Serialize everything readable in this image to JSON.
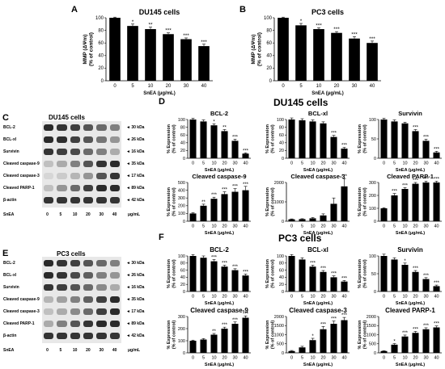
{
  "panels": {
    "A": "A",
    "B": "B",
    "C": "C",
    "D": "D",
    "E": "E",
    "F": "F"
  },
  "blot_C": {
    "title": "DU145 cells",
    "rows": [
      {
        "name": "BCL-2",
        "kda": "30 kDa",
        "intensity": [
          0.9,
          0.85,
          0.8,
          0.7,
          0.6,
          0.5
        ]
      },
      {
        "name": "BCL-xl",
        "kda": "26 kDa",
        "intensity": [
          0.9,
          0.88,
          0.8,
          0.7,
          0.55,
          0.4
        ]
      },
      {
        "name": "Survivin",
        "kda": "16 kDa",
        "intensity": [
          0.85,
          0.8,
          0.75,
          0.6,
          0.5,
          0.3
        ]
      },
      {
        "name": "Cleaved caspase-9",
        "kda": "35 kDa",
        "intensity": [
          0.2,
          0.3,
          0.5,
          0.7,
          0.85,
          0.9
        ]
      },
      {
        "name": "Cleaved caspase-3",
        "kda": "17 kDa",
        "intensity": [
          0.1,
          0.15,
          0.25,
          0.4,
          0.7,
          0.85
        ]
      },
      {
        "name": "Cleaved PARP-1",
        "kda": "89 kDa",
        "intensity": [
          0.2,
          0.4,
          0.6,
          0.8,
          0.9,
          0.9
        ]
      },
      {
        "name": "β-actin",
        "kda": "42 kDa",
        "intensity": [
          0.85,
          0.85,
          0.85,
          0.85,
          0.85,
          0.85
        ]
      }
    ],
    "lane_label": "SnEA",
    "lanes": [
      "0",
      "5",
      "10",
      "20",
      "30",
      "40"
    ],
    "unit": "μg/mL"
  },
  "blot_E": {
    "title": "PC3 cells",
    "rows": [
      {
        "name": "BCL-2",
        "kda": "30 kDa",
        "intensity": [
          0.9,
          0.85,
          0.8,
          0.7,
          0.6,
          0.5
        ]
      },
      {
        "name": "BCL-xl",
        "kda": "26 kDa",
        "intensity": [
          0.9,
          0.85,
          0.75,
          0.65,
          0.5,
          0.4
        ]
      },
      {
        "name": "Survivin",
        "kda": "16 kDa",
        "intensity": [
          0.85,
          0.8,
          0.7,
          0.6,
          0.45,
          0.3
        ]
      },
      {
        "name": "Cleaved caspase-9",
        "kda": "35 kDa",
        "intensity": [
          0.25,
          0.35,
          0.5,
          0.65,
          0.8,
          0.9
        ]
      },
      {
        "name": "Cleaved caspase-3",
        "kda": "17 kDa",
        "intensity": [
          0.2,
          0.3,
          0.45,
          0.6,
          0.8,
          0.9
        ]
      },
      {
        "name": "Cleaved PARP-1",
        "kda": "89 kDa",
        "intensity": [
          0.3,
          0.5,
          0.7,
          0.85,
          0.9,
          0.9
        ]
      },
      {
        "name": "β-actin",
        "kda": "42 kDa",
        "intensity": [
          0.85,
          0.85,
          0.85,
          0.85,
          0.85,
          0.85
        ]
      }
    ],
    "lane_label": "SnEA",
    "lanes": [
      "0",
      "5",
      "10",
      "20",
      "30",
      "40"
    ],
    "unit": "μg/mL"
  },
  "section_D_title": "DU145 cells",
  "section_F_title": "PC3 cells",
  "chart_data": [
    {
      "id": "A",
      "type": "bar",
      "title": "DU145 cells",
      "xlabel": "SnEA (μg/mL)",
      "ylabel": "MMP (ΔΨm)\n(% of control)",
      "categories": [
        "0",
        "5",
        "10",
        "20",
        "30",
        "40"
      ],
      "values": [
        100,
        87,
        82,
        74,
        66,
        55
      ],
      "err": [
        1,
        3,
        3,
        2,
        2,
        3
      ],
      "sig": [
        "",
        "*",
        "**",
        "***",
        "***",
        "***"
      ],
      "ylim": [
        0,
        100
      ],
      "yticks": [
        0,
        20,
        40,
        60,
        80,
        100
      ]
    },
    {
      "id": "B",
      "type": "bar",
      "title": "PC3 cells",
      "xlabel": "SnEA (μg/mL)",
      "ylabel": "MMP (ΔΨm)\n(% of control)",
      "categories": [
        "0",
        "5",
        "10",
        "20",
        "30",
        "40"
      ],
      "values": [
        100,
        88,
        82,
        76,
        67,
        60
      ],
      "err": [
        1,
        3,
        2,
        2,
        3,
        3
      ],
      "sig": [
        "",
        "*",
        "***",
        "***",
        "***",
        "***"
      ],
      "ylim": [
        0,
        100
      ],
      "yticks": [
        0,
        20,
        40,
        60,
        80,
        100
      ]
    },
    {
      "id": "D1",
      "type": "bar",
      "title": "BCL-2",
      "xlabel": "SnEA (μg/mL)",
      "ylabel": "% Expression\n(% of control)",
      "categories": [
        "0",
        "5",
        "10",
        "20",
        "30",
        "40"
      ],
      "values": [
        100,
        95,
        85,
        70,
        45,
        12
      ],
      "err": [
        3,
        4,
        4,
        4,
        4,
        2
      ],
      "sig": [
        "",
        "",
        "*",
        "**",
        "***",
        "***"
      ],
      "ylim": [
        0,
        100
      ],
      "yticks": [
        0,
        20,
        40,
        60,
        80,
        100
      ]
    },
    {
      "id": "D2",
      "type": "bar",
      "title": "BCL-xl",
      "xlabel": "SnEA (μg/mL)",
      "ylabel": "% Expression\n(% of control)",
      "categories": [
        "0",
        "5",
        "10",
        "20",
        "30",
        "40"
      ],
      "values": [
        100,
        98,
        95,
        90,
        55,
        25
      ],
      "err": [
        4,
        4,
        4,
        4,
        4,
        3
      ],
      "sig": [
        "",
        "",
        "",
        "",
        "***",
        "***"
      ],
      "ylim": [
        0,
        100
      ],
      "yticks": [
        0,
        20,
        40,
        60,
        80,
        100
      ]
    },
    {
      "id": "D3",
      "type": "bar",
      "title": "Survivin",
      "xlabel": "SnEA (μg/mL)",
      "ylabel": "% Expression\n(% of control)",
      "categories": [
        "0",
        "5",
        "10",
        "20",
        "30",
        "40"
      ],
      "values": [
        100,
        95,
        90,
        70,
        45,
        15
      ],
      "err": [
        3,
        4,
        3,
        4,
        4,
        3
      ],
      "sig": [
        "",
        "",
        "",
        "***",
        "***",
        "***"
      ],
      "ylim": [
        0,
        100
      ],
      "yticks": [
        0,
        50,
        100
      ]
    },
    {
      "id": "D4",
      "type": "bar",
      "title": "Cleaved caspase-9",
      "xlabel": "SnEA (μg/mL)",
      "ylabel": "% Expression\n(% of control)",
      "categories": [
        "0",
        "5",
        "10",
        "20",
        "30",
        "40"
      ],
      "values": [
        100,
        200,
        290,
        350,
        380,
        400
      ],
      "err": [
        10,
        20,
        20,
        30,
        40,
        50
      ],
      "sig": [
        "",
        "**",
        "***",
        "***",
        "***",
        "***"
      ],
      "ylim": [
        0,
        500
      ],
      "yticks": [
        0,
        100,
        200,
        300,
        400,
        500
      ]
    },
    {
      "id": "D5",
      "type": "bar",
      "title": "Cleaved caspase-3",
      "xlabel": "SnEA (μg/mL)",
      "ylabel": "% Expression\n(% of control)",
      "categories": [
        "0",
        "5",
        "10",
        "20",
        "30",
        "40"
      ],
      "values": [
        100,
        110,
        150,
        300,
        900,
        1800
      ],
      "err": [
        20,
        20,
        40,
        80,
        300,
        400
      ],
      "sig": [
        "",
        "",
        "",
        "",
        "",
        "***"
      ],
      "ylim": [
        0,
        2000
      ],
      "yticks": [
        0,
        1000,
        2000
      ]
    },
    {
      "id": "D6",
      "type": "bar",
      "title": "Cleaved PARP-1",
      "xlabel": "SnEA (μg/mL)",
      "ylabel": "% Expression\n(% of control)",
      "categories": [
        "0",
        "5",
        "10",
        "20",
        "30",
        "40"
      ],
      "values": [
        100,
        200,
        250,
        290,
        300,
        300
      ],
      "err": [
        5,
        15,
        10,
        10,
        10,
        10
      ],
      "sig": [
        "",
        "***",
        "***",
        "***",
        "***",
        "***"
      ],
      "ylim": [
        0,
        300
      ],
      "yticks": [
        0,
        100,
        200,
        300
      ]
    },
    {
      "id": "F1",
      "type": "bar",
      "title": "BCL-2",
      "xlabel": "SnEA (μg/mL)",
      "ylabel": "% Expression\n(% of control)",
      "categories": [
        "0",
        "5",
        "10",
        "20",
        "30",
        "40"
      ],
      "values": [
        100,
        95,
        85,
        70,
        60,
        45
      ],
      "err": [
        4,
        5,
        5,
        4,
        4,
        4
      ],
      "sig": [
        "",
        "",
        "***",
        "***",
        "***",
        "***"
      ],
      "ylim": [
        0,
        100
      ],
      "yticks": [
        0,
        20,
        40,
        60,
        80,
        100
      ]
    },
    {
      "id": "F2",
      "type": "bar",
      "title": "BCL-xl",
      "xlabel": "SnEA (μg/mL)",
      "ylabel": "% Expression\n(% of control)",
      "categories": [
        "0",
        "5",
        "10",
        "20",
        "30",
        "40"
      ],
      "values": [
        100,
        90,
        70,
        55,
        40,
        28
      ],
      "err": [
        4,
        5,
        4,
        4,
        4,
        3
      ],
      "sig": [
        "",
        "",
        "***",
        "***",
        "***",
        "***"
      ],
      "ylim": [
        0,
        100
      ],
      "yticks": [
        0,
        20,
        40,
        60,
        80,
        100
      ]
    },
    {
      "id": "F3",
      "type": "bar",
      "title": "Survivin",
      "xlabel": "SnEA (μg/mL)",
      "ylabel": "% Expression\n(% of control)",
      "categories": [
        "0",
        "5",
        "10",
        "20",
        "30",
        "40"
      ],
      "values": [
        100,
        90,
        75,
        55,
        35,
        15
      ],
      "err": [
        5,
        5,
        5,
        4,
        4,
        3
      ],
      "sig": [
        "",
        "",
        "*",
        "***",
        "***",
        "***"
      ],
      "ylim": [
        0,
        100
      ],
      "yticks": [
        0,
        50,
        100
      ]
    },
    {
      "id": "F4",
      "type": "bar",
      "title": "Cleaved caspase-9",
      "xlabel": "SnEA (μg/mL)",
      "ylabel": "% Expression\n(% of control)",
      "categories": [
        "0",
        "5",
        "10",
        "20",
        "30",
        "40"
      ],
      "values": [
        100,
        110,
        150,
        200,
        240,
        290
      ],
      "err": [
        5,
        8,
        10,
        12,
        15,
        15
      ],
      "sig": [
        "",
        "",
        "**",
        "***",
        "***",
        "***"
      ],
      "ylim": [
        0,
        300
      ],
      "yticks": [
        0,
        100,
        200,
        300
      ]
    },
    {
      "id": "F5",
      "type": "bar",
      "title": "Cleaved caspase-3",
      "xlabel": "SnEA (μg/mL)",
      "ylabel": "% Expression\n(% of control)",
      "categories": [
        "0",
        "5",
        "10",
        "20",
        "30",
        "40"
      ],
      "values": [
        100,
        300,
        700,
        1300,
        1600,
        1800
      ],
      "err": [
        30,
        60,
        100,
        150,
        150,
        150
      ],
      "sig": [
        "",
        "",
        "*",
        "***",
        "***",
        "***"
      ],
      "ylim": [
        0,
        2000
      ],
      "yticks": [
        0,
        500,
        1000,
        1500,
        2000
      ]
    },
    {
      "id": "F6",
      "type": "bar",
      "title": "Cleaved PARP-1",
      "xlabel": "SnEA (μg/mL)",
      "ylabel": "% Expression\n(% of control)",
      "categories": [
        "0",
        "5",
        "10",
        "20",
        "30",
        "40"
      ],
      "values": [
        100,
        450,
        900,
        1100,
        1300,
        1400
      ],
      "err": [
        20,
        60,
        80,
        80,
        80,
        80
      ],
      "sig": [
        "",
        "*",
        "***",
        "***",
        "***",
        "***"
      ],
      "ylim": [
        0,
        2000
      ],
      "yticks": [
        0,
        500,
        1000,
        1500,
        2000
      ]
    }
  ]
}
